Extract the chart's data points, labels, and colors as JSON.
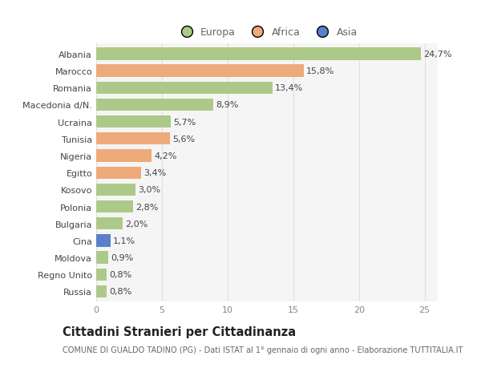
{
  "countries": [
    "Albania",
    "Marocco",
    "Romania",
    "Macedonia d/N.",
    "Ucraina",
    "Tunisia",
    "Nigeria",
    "Egitto",
    "Kosovo",
    "Polonia",
    "Bulgaria",
    "Cina",
    "Moldova",
    "Regno Unito",
    "Russia"
  ],
  "values": [
    24.7,
    15.8,
    13.4,
    8.9,
    5.7,
    5.6,
    4.2,
    3.4,
    3.0,
    2.8,
    2.0,
    1.1,
    0.9,
    0.8,
    0.8
  ],
  "labels": [
    "24,7%",
    "15,8%",
    "13,4%",
    "8,9%",
    "5,7%",
    "5,6%",
    "4,2%",
    "3,4%",
    "3,0%",
    "2,8%",
    "2,0%",
    "1,1%",
    "0,9%",
    "0,8%",
    "0,8%"
  ],
  "continents": [
    "Europa",
    "Africa",
    "Europa",
    "Europa",
    "Europa",
    "Africa",
    "Africa",
    "Africa",
    "Europa",
    "Europa",
    "Europa",
    "Asia",
    "Europa",
    "Europa",
    "Europa"
  ],
  "colors": {
    "Europa": "#adc98a",
    "Africa": "#edaa7a",
    "Asia": "#5b7fcc"
  },
  "xlim": [
    0,
    26
  ],
  "xticks": [
    0,
    5,
    10,
    15,
    20,
    25
  ],
  "title": "Cittadini Stranieri per Cittadinanza",
  "subtitle": "COMUNE DI GUALDO TADINO (PG) - Dati ISTAT al 1° gennaio di ogni anno - Elaborazione TUTTITALIA.IT",
  "background_color": "#ffffff",
  "plot_bg_color": "#f5f5f5",
  "grid_color": "#e0e0e0",
  "bar_height": 0.72,
  "label_fontsize": 8,
  "tick_fontsize": 8,
  "title_fontsize": 10.5,
  "subtitle_fontsize": 7,
  "legend_fontsize": 9
}
